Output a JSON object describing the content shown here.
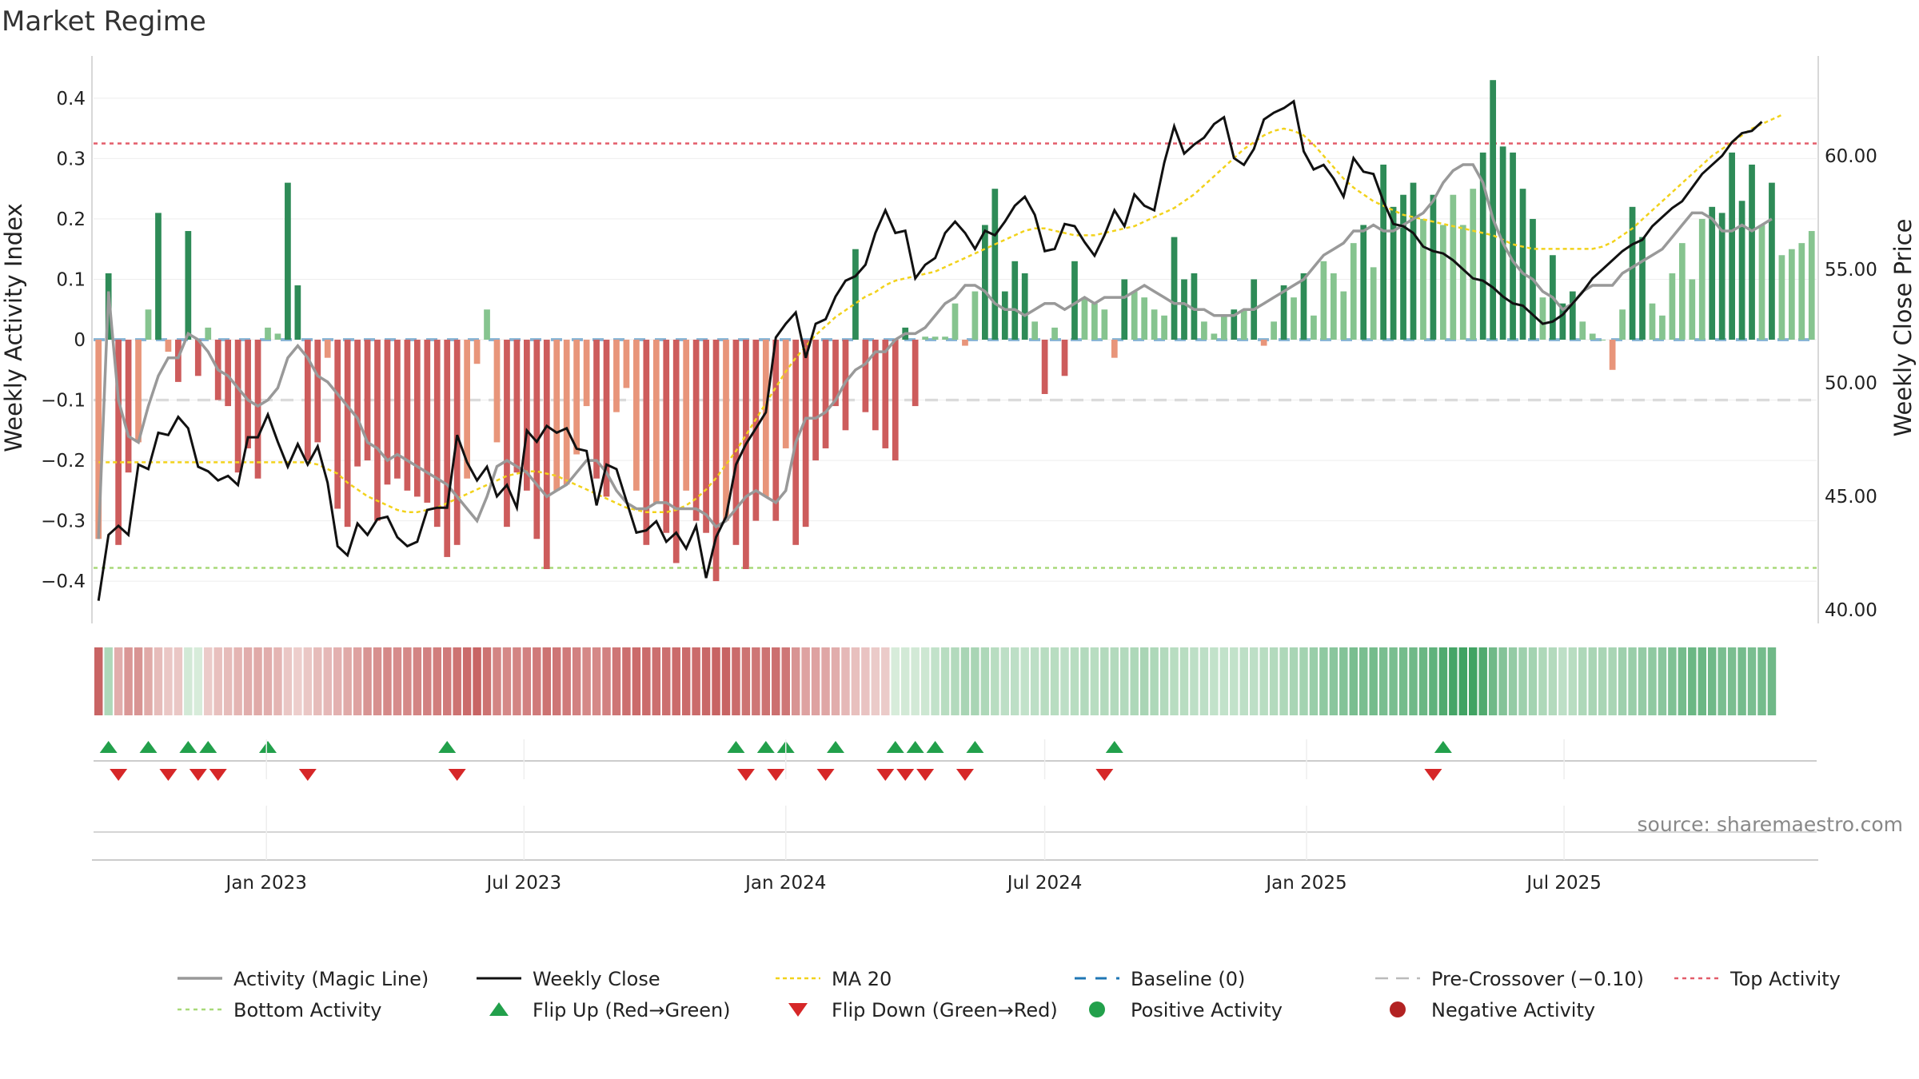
{
  "title": "Market Regime",
  "source": "source: sharemaestro.com",
  "colors": {
    "pos_dark": "#2e8b57",
    "pos_light": "#86c48f",
    "neg_dark": "#cd5c5c",
    "neg_light": "#e8957a",
    "magic_line": "#999999",
    "close": "#111111",
    "ma20": "#f2d21b",
    "baseline": "#1f77b4",
    "pre_crossover": "#bbbbbb",
    "top": "#e35d6a",
    "bottom": "#a8d979",
    "flip_up": "#22a04b",
    "flip_down": "#d62728"
  },
  "legend": [
    {
      "key": "magic",
      "label": "Activity (Magic Line)"
    },
    {
      "key": "close",
      "label": "Weekly Close"
    },
    {
      "key": "ma20",
      "label": "MA 20"
    },
    {
      "key": "baseline",
      "label": "Baseline (0)"
    },
    {
      "key": "pre",
      "label": "Pre-Crossover (−0.10)"
    },
    {
      "key": "top",
      "label": "Top Activity"
    },
    {
      "key": "bottom",
      "label": "Bottom Activity"
    },
    {
      "key": "up",
      "label": "Flip Up (Red→Green)"
    },
    {
      "key": "down",
      "label": "Flip Down (Green→Red)"
    },
    {
      "key": "pos",
      "label": "Positive Activity"
    },
    {
      "key": "neg",
      "label": "Negative Activity"
    }
  ],
  "chart_data": {
    "type": "bar",
    "start_date": "2022-09-05",
    "x_ticks": [
      "Jan 2023",
      "Jul 2023",
      "Jan 2024",
      "Jul 2024",
      "Jan 2025",
      "Jul 2025"
    ],
    "left_axis": {
      "label": "Weekly Activity Index",
      "range": [
        -0.47,
        0.47
      ],
      "ticks": [
        "0.4",
        "0.3",
        "0.2",
        "0.1",
        "0",
        "−0.1",
        "−0.2",
        "−0.3",
        "−0.4"
      ]
    },
    "right_axis": {
      "label": "Weekly Close Price",
      "range": [
        39.4,
        64.4
      ],
      "ticks": [
        "60.00",
        "55.00",
        "50.00",
        "45.00",
        "40.00"
      ]
    },
    "reference_lines": {
      "baseline": 0,
      "pre_crossover": -0.1,
      "top_activity": 0.325,
      "bottom_activity": -0.378
    },
    "activity": [
      -0.33,
      0.11,
      -0.34,
      -0.22,
      -0.17,
      0.05,
      0.21,
      -0.02,
      -0.07,
      0.18,
      -0.06,
      0.02,
      -0.1,
      -0.11,
      -0.22,
      -0.18,
      -0.23,
      0.02,
      0.01,
      0.26,
      0.09,
      -0.2,
      -0.17,
      -0.03,
      -0.28,
      -0.31,
      -0.21,
      -0.2,
      -0.3,
      -0.24,
      -0.23,
      -0.25,
      -0.26,
      -0.27,
      -0.31,
      -0.36,
      -0.34,
      -0.23,
      -0.04,
      0.05,
      -0.17,
      -0.31,
      -0.22,
      -0.25,
      -0.33,
      -0.38,
      -0.25,
      -0.24,
      -0.19,
      -0.11,
      -0.23,
      -0.26,
      -0.12,
      -0.08,
      -0.25,
      -0.34,
      -0.27,
      -0.32,
      -0.37,
      -0.25,
      -0.3,
      -0.32,
      -0.4,
      -0.3,
      -0.34,
      -0.38,
      -0.3,
      -0.26,
      -0.3,
      -0.18,
      -0.34,
      -0.31,
      -0.2,
      -0.18,
      -0.11,
      -0.15,
      0.15,
      -0.12,
      -0.15,
      -0.18,
      -0.2,
      0.02,
      -0.11,
      0.005,
      0.005,
      0.005,
      0.06,
      -0.01,
      0.08,
      0.19,
      0.25,
      0.08,
      0.13,
      0.11,
      0.03,
      -0.09,
      0.02,
      -0.06,
      0.13,
      0.07,
      0.06,
      0.05,
      -0.03,
      0.1,
      0.08,
      0.07,
      0.05,
      0.04,
      0.17,
      0.1,
      0.11,
      0.03,
      0.01,
      0.04,
      0.05,
      0.05,
      0.1,
      -0.01,
      0.03,
      0.09,
      0.07,
      0.11,
      0.04,
      0.13,
      0.11,
      0.08,
      0.16,
      0.19,
      0.12,
      0.29,
      0.22,
      0.24,
      0.26,
      0.2,
      0.24,
      0.19,
      0.24,
      0.19,
      0.25,
      0.31,
      0.43,
      0.32,
      0.31,
      0.25,
      0.2,
      0.07,
      0.14,
      0.06,
      0.08,
      0.03,
      0.01,
      0.0,
      -0.05,
      0.05,
      0.22,
      0.17,
      0.06,
      0.04,
      0.11,
      0.16,
      0.1,
      0.2,
      0.22,
      0.21,
      0.31,
      0.23,
      0.29,
      0.19,
      0.26,
      0.14,
      0.15,
      0.16,
      0.18
    ],
    "magic_line": [
      -0.33,
      0.08,
      -0.1,
      -0.16,
      -0.17,
      -0.11,
      -0.06,
      -0.03,
      -0.03,
      0.01,
      -0.0,
      -0.02,
      -0.05,
      -0.06,
      -0.08,
      -0.1,
      -0.11,
      -0.1,
      -0.08,
      -0.03,
      -0.01,
      -0.03,
      -0.06,
      -0.07,
      -0.09,
      -0.11,
      -0.13,
      -0.17,
      -0.18,
      -0.2,
      -0.19,
      -0.2,
      -0.21,
      -0.22,
      -0.23,
      -0.24,
      -0.26,
      -0.28,
      -0.3,
      -0.26,
      -0.21,
      -0.2,
      -0.21,
      -0.22,
      -0.24,
      -0.26,
      -0.25,
      -0.24,
      -0.22,
      -0.2,
      -0.2,
      -0.22,
      -0.25,
      -0.27,
      -0.28,
      -0.28,
      -0.27,
      -0.27,
      -0.28,
      -0.28,
      -0.28,
      -0.29,
      -0.31,
      -0.3,
      -0.28,
      -0.26,
      -0.25,
      -0.26,
      -0.27,
      -0.25,
      -0.17,
      -0.13,
      -0.13,
      -0.12,
      -0.1,
      -0.07,
      -0.05,
      -0.04,
      -0.02,
      -0.02,
      -0.0,
      0.01,
      0.01,
      0.02,
      0.04,
      0.06,
      0.07,
      0.09,
      0.09,
      0.08,
      0.06,
      0.05,
      0.05,
      0.04,
      0.05,
      0.06,
      0.06,
      0.05,
      0.06,
      0.07,
      0.06,
      0.07,
      0.07,
      0.07,
      0.08,
      0.09,
      0.08,
      0.07,
      0.06,
      0.06,
      0.05,
      0.05,
      0.04,
      0.04,
      0.04,
      0.05,
      0.05,
      0.06,
      0.07,
      0.08,
      0.09,
      0.1,
      0.12,
      0.14,
      0.15,
      0.16,
      0.18,
      0.18,
      0.19,
      0.18,
      0.18,
      0.19,
      0.2,
      0.21,
      0.23,
      0.26,
      0.28,
      0.29,
      0.29,
      0.26,
      0.2,
      0.16,
      0.13,
      0.11,
      0.1,
      0.08,
      0.07,
      0.05,
      0.06,
      0.08,
      0.09,
      0.09,
      0.09,
      0.11,
      0.12,
      0.13,
      0.14,
      0.15,
      0.17,
      0.19,
      0.21,
      0.21,
      0.2,
      0.18,
      0.18,
      0.19,
      0.18,
      0.19,
      0.2
    ],
    "weekly_close": [
      40.4,
      43.3,
      43.7,
      43.3,
      46.4,
      46.2,
      47.8,
      47.7,
      48.5,
      48.0,
      46.3,
      46.1,
      45.7,
      45.9,
      45.5,
      47.6,
      47.6,
      48.6,
      47.4,
      46.3,
      47.3,
      46.4,
      47.2,
      45.6,
      42.8,
      42.4,
      43.8,
      43.3,
      44.0,
      44.1,
      43.2,
      42.8,
      43.0,
      44.4,
      44.5,
      44.5,
      47.7,
      46.5,
      45.7,
      46.3,
      45.0,
      45.5,
      44.5,
      47.9,
      47.4,
      48.1,
      47.8,
      48.0,
      47.1,
      47.0,
      44.6,
      46.4,
      46.2,
      44.8,
      43.4,
      43.5,
      43.9,
      43.0,
      43.4,
      42.7,
      43.7,
      41.4,
      43.2,
      44.1,
      46.4,
      47.3,
      48.0,
      48.7,
      52.0,
      52.6,
      53.1,
      51.1,
      52.6,
      52.8,
      53.8,
      54.5,
      54.7,
      55.2,
      56.6,
      57.6,
      56.6,
      56.7,
      54.6,
      55.2,
      55.5,
      56.6,
      57.1,
      56.6,
      55.9,
      56.7,
      56.5,
      57.1,
      57.8,
      58.2,
      57.4,
      55.8,
      55.9,
      57.0,
      56.9,
      56.2,
      55.6,
      56.5,
      57.6,
      56.9,
      58.3,
      57.8,
      57.6,
      59.7,
      61.3,
      60.1,
      60.5,
      60.8,
      61.4,
      61.7,
      59.9,
      59.6,
      60.3,
      61.6,
      61.9,
      62.1,
      62.4,
      60.2,
      59.4,
      59.6,
      59.0,
      58.2,
      59.9,
      59.3,
      59.2,
      58.0,
      57.0,
      56.9,
      56.6,
      56.0,
      55.8,
      55.7,
      55.4,
      55.0,
      54.6,
      54.5,
      54.2,
      53.8,
      53.5,
      53.4,
      53.0,
      52.6,
      52.7,
      53.0,
      53.5,
      54.0,
      54.6,
      55.0,
      55.4,
      55.8,
      56.1,
      56.3,
      56.9,
      57.3,
      57.7,
      58.0,
      58.6,
      59.2,
      59.6,
      60.0,
      60.6,
      61.0,
      61.1,
      61.5
    ],
    "ma20": [
      46.5,
      46.5,
      46.5,
      46.5,
      46.5,
      46.5,
      46.5,
      46.5,
      46.5,
      46.5,
      46.5,
      46.5,
      46.5,
      46.5,
      46.5,
      46.5,
      46.5,
      46.5,
      46.5,
      46.5,
      46.5,
      46.5,
      46.4,
      46.2,
      46.0,
      45.6,
      45.3,
      45.0,
      44.8,
      44.6,
      44.4,
      44.3,
      44.3,
      44.4,
      44.5,
      44.7,
      44.9,
      45.1,
      45.3,
      45.5,
      45.7,
      45.9,
      46.0,
      46.1,
      46.1,
      46.0,
      45.9,
      45.7,
      45.5,
      45.3,
      45.1,
      44.9,
      44.7,
      44.5,
      44.4,
      44.3,
      44.3,
      44.3,
      44.4,
      44.6,
      44.9,
      45.3,
      45.8,
      46.4,
      47.0,
      47.7,
      48.4,
      49.1,
      49.8,
      50.5,
      51.1,
      51.6,
      52.1,
      52.5,
      52.9,
      53.2,
      53.5,
      53.8,
      54.0,
      54.3,
      54.5,
      54.6,
      54.7,
      54.8,
      54.9,
      55.1,
      55.3,
      55.5,
      55.7,
      55.9,
      56.1,
      56.3,
      56.5,
      56.7,
      56.8,
      56.8,
      56.7,
      56.6,
      56.5,
      56.5,
      56.5,
      56.6,
      56.7,
      56.8,
      56.9,
      57.1,
      57.3,
      57.5,
      57.7,
      58.0,
      58.3,
      58.7,
      59.1,
      59.5,
      59.9,
      60.3,
      60.6,
      60.9,
      61.1,
      61.2,
      61.1,
      60.9,
      60.5,
      60.0,
      59.5,
      59.0,
      58.6,
      58.3,
      58.0,
      57.8,
      57.6,
      57.4,
      57.3,
      57.2,
      57.1,
      57.0,
      56.9,
      56.8,
      56.7,
      56.6,
      56.5,
      56.3,
      56.1,
      56.0,
      55.9,
      55.9,
      55.9,
      55.9,
      55.9,
      55.9,
      55.9,
      56.0,
      56.2,
      56.5,
      56.8,
      57.2,
      57.6,
      58.0,
      58.4,
      58.8,
      59.2,
      59.6,
      60.0,
      60.3,
      60.6,
      60.9,
      61.2,
      61.4,
      61.6,
      61.8
    ],
    "flip_up_weeks": [
      1,
      5,
      9,
      11,
      17,
      35,
      64,
      67,
      69,
      74,
      80,
      82,
      84,
      88,
      102,
      135
    ],
    "flip_down_weeks": [
      2,
      7,
      10,
      12,
      21,
      36,
      65,
      68,
      73,
      79,
      81,
      83,
      87,
      101,
      134
    ]
  }
}
